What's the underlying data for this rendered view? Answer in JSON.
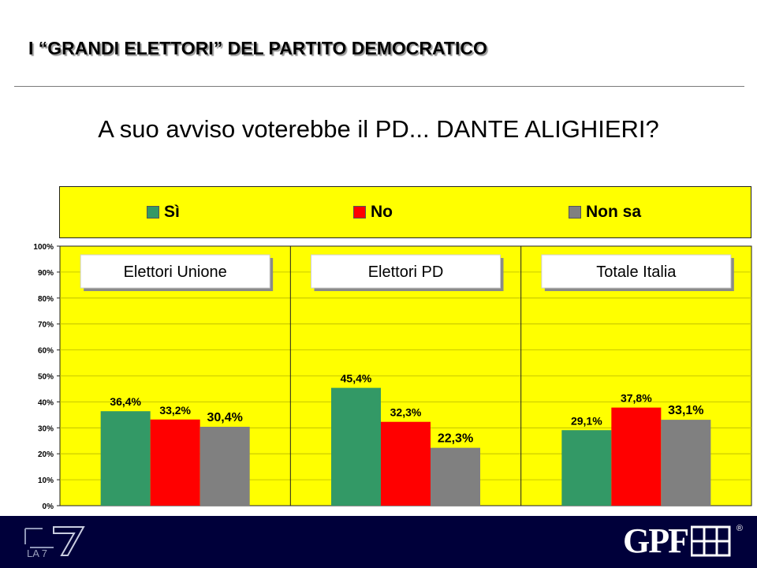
{
  "page": {
    "title": "I “GRANDI ELETTORI” DEL PARTITO DEMOCRATICO",
    "question": "A suo avviso voterebbe il PD... DANTE ALIGHIERI?"
  },
  "colors": {
    "background": "#ffff00",
    "si": "#339966",
    "no": "#ff0000",
    "non_sa": "#808080",
    "footer": "#00003a"
  },
  "legend": [
    {
      "label": "Sì",
      "color": "#339966"
    },
    {
      "label": "No",
      "color": "#ff0000"
    },
    {
      "label": "Non sa",
      "color": "#808080"
    }
  ],
  "chart_data": {
    "type": "bar",
    "categories": [
      "Elettori Unione",
      "Elettori PD",
      "Totale Italia"
    ],
    "series": [
      {
        "name": "Sì",
        "values": [
          36.4,
          45.4,
          29.1
        ],
        "labels": [
          "36,4%",
          "45,4%",
          "29,1%"
        ]
      },
      {
        "name": "No",
        "values": [
          33.2,
          32.3,
          37.8
        ],
        "labels": [
          "33,2%",
          "32,3%",
          "37,8%"
        ]
      },
      {
        "name": "Non sa",
        "values": [
          30.4,
          22.3,
          33.1
        ],
        "labels": [
          "30,4%",
          "22,3%",
          "33,1%"
        ]
      }
    ],
    "ylim": [
      0,
      100
    ],
    "y_ticks": [
      "0%",
      "10%",
      "20%",
      "30%",
      "40%",
      "50%",
      "60%",
      "70%",
      "80%",
      "90%",
      "100%"
    ],
    "grid": true,
    "legend_position": "top",
    "title": "",
    "xlabel": "",
    "ylabel": ""
  },
  "footer": {
    "left_logo": "LA 7",
    "right_logo": "GPF",
    "right_logo_mark": "®"
  }
}
